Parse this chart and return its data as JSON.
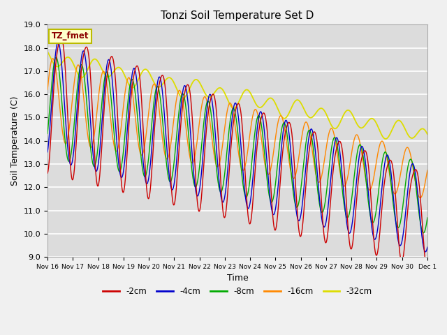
{
  "title": "Tonzi Soil Temperature Set D",
  "xlabel": "Time",
  "ylabel": "Soil Temperature (C)",
  "ylim": [
    9.0,
    19.0
  ],
  "yticks": [
    9.0,
    10.0,
    11.0,
    12.0,
    13.0,
    14.0,
    15.0,
    16.0,
    17.0,
    18.0,
    19.0
  ],
  "legend_label": "TZ_fmet",
  "series_labels": [
    "-2cm",
    "-4cm",
    "-8cm",
    "-16cm",
    "-32cm"
  ],
  "series_colors": [
    "#cc0000",
    "#0000cc",
    "#00aa00",
    "#ff8800",
    "#dddd00"
  ],
  "plot_bg": "#dcdcdc",
  "fig_bg": "#f0f0f0",
  "grid_color": "#ffffff",
  "xtick_labels": [
    "Nov 16",
    "Nov 17",
    "Nov 18",
    "Nov 19",
    "Nov 20",
    "Nov 21",
    "Nov 22",
    "Nov 23",
    "Nov 24",
    "Nov 25",
    "Nov 26",
    "Nov 27",
    "Nov 28",
    "Nov 29",
    "Nov 30",
    "Dec 1"
  ]
}
